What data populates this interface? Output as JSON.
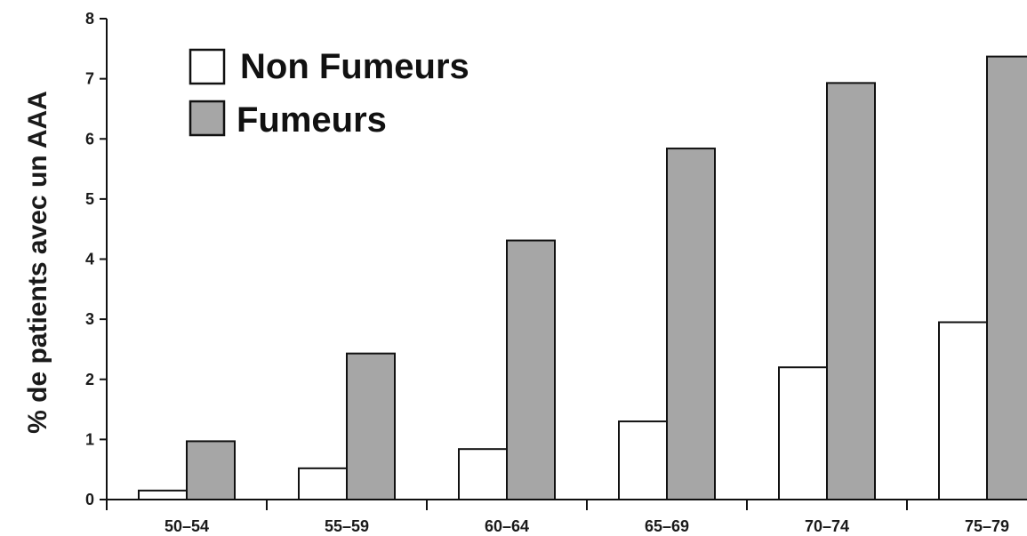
{
  "chart_data": {
    "type": "bar",
    "title": "",
    "xlabel": "",
    "ylabel": "% de patients avec un AAA",
    "categories": [
      "50–54",
      "55–59",
      "60–64",
      "65–69",
      "70–74",
      "75–79"
    ],
    "series": [
      {
        "name": "Non Fumeurs",
        "color": "#ffffff",
        "values": [
          0.15,
          0.52,
          0.84,
          1.3,
          2.2,
          2.95
        ]
      },
      {
        "name": "Fumeurs",
        "color": "#a6a6a6",
        "values": [
          0.97,
          2.43,
          4.31,
          5.84,
          6.93,
          7.37
        ]
      }
    ],
    "ylim": [
      0,
      8
    ],
    "yticks": [
      0,
      1,
      2,
      3,
      4,
      5,
      6,
      7,
      8
    ],
    "grid": false,
    "legend_position": "top-left"
  }
}
